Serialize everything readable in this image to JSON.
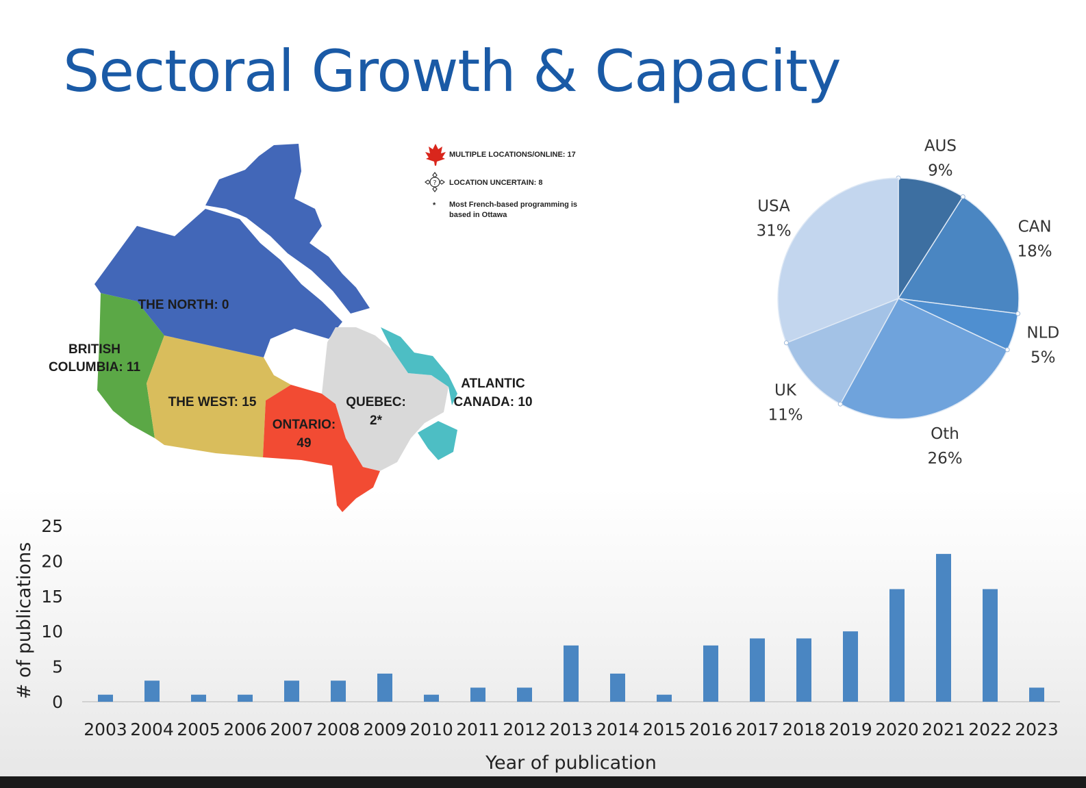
{
  "slide": {
    "title": "Sectoral Growth & Capacity",
    "title_color": "#1a5aa6"
  },
  "map": {
    "legend": {
      "multiple": "MULTIPLE LOCATIONS/ONLINE: 17",
      "uncertain": "LOCATION UNCERTAIN: 8",
      "note_line1": "Most French-based programming is",
      "note_line2": "based in Ottawa",
      "note_marker": "*"
    },
    "regions": {
      "north": {
        "label": "THE NORTH: 0",
        "color": "#4267b8"
      },
      "bc": {
        "line1": "BRITISH",
        "line2": "COLUMBIA: 11",
        "color": "#5ba846"
      },
      "west": {
        "label": "THE WEST: 15",
        "color": "#d9bd5c"
      },
      "ontario": {
        "line1": "ONTARIO:",
        "line2": "49",
        "color": "#f24b33"
      },
      "quebec": {
        "line1": "QUEBEC:",
        "line2": "2*",
        "color": "#d9d9d9"
      },
      "atlantic": {
        "line1": "ATLANTIC",
        "line2": "CANADA: 10",
        "color": "#4dbec4"
      }
    }
  },
  "chart_data": [
    {
      "type": "pie",
      "slices": [
        {
          "label": "AUS",
          "value": 9,
          "display": "9%",
          "color": "#3d6fa1"
        },
        {
          "label": "CAN",
          "value": 18,
          "display": "18%",
          "color": "#4a86c2"
        },
        {
          "label": "NLD",
          "value": 5,
          "display": "5%",
          "color": "#4f8fd0"
        },
        {
          "label": "Oth",
          "value": 26,
          "display": "26%",
          "color": "#6fa3dc"
        },
        {
          "label": "UK",
          "value": 11,
          "display": "11%",
          "color": "#a3c2e6"
        },
        {
          "label": "USA",
          "value": 31,
          "display": "31%",
          "color": "#c3d6ee"
        }
      ]
    },
    {
      "type": "bar",
      "categories": [
        "2003",
        "2004",
        "2005",
        "2006",
        "2007",
        "2008",
        "2009",
        "2010",
        "2011",
        "2012",
        "2013",
        "2014",
        "2015",
        "2016",
        "2017",
        "2018",
        "2019",
        "2020",
        "2021",
        "2022",
        "2023"
      ],
      "values": [
        1,
        3,
        1,
        1,
        3,
        3,
        4,
        1,
        2,
        2,
        8,
        4,
        1,
        8,
        9,
        9,
        10,
        16,
        21,
        16,
        2
      ],
      "xlabel": "Year of publication",
      "ylabel": "# of publications",
      "ylim": [
        0,
        25
      ],
      "yticks": [
        "0",
        "5",
        "10",
        "15",
        "20",
        "25"
      ],
      "bar_color": "#4a86c2",
      "grid": false
    }
  ]
}
